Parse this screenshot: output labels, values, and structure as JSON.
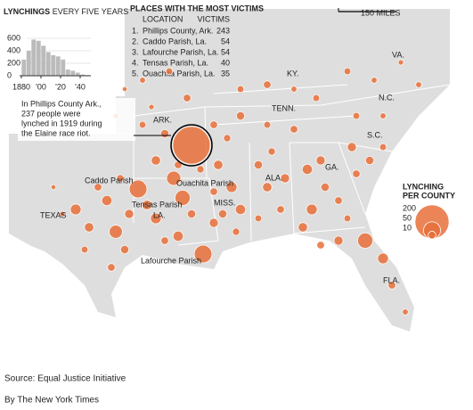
{
  "histogram": {
    "type": "histogram",
    "title": "LYNCHINGS",
    "subtitle": "EVERY FIVE YEARS",
    "bins": [
      1880,
      1885,
      1890,
      1895,
      1900,
      1905,
      1910,
      1915,
      1920,
      1925,
      1930,
      1935,
      1940,
      1945,
      1950
    ],
    "values": [
      260,
      400,
      580,
      560,
      480,
      380,
      330,
      310,
      260,
      100,
      80,
      50,
      20,
      10
    ],
    "color": "#bbbbbb",
    "xlim": [
      1880,
      1950
    ],
    "xticks": [
      1880,
      {
        "value": 1900,
        "label": "'00"
      },
      {
        "value": 1920,
        "label": "'20"
      },
      {
        "value": 1940,
        "label": "'40"
      }
    ],
    "ylim": [
      0,
      600
    ],
    "yticks": [
      0,
      200,
      400,
      600
    ],
    "grid": true
  },
  "table": {
    "title": "PLACES WITH THE MOST VICTIMS",
    "columns": [
      "LOCATION",
      "VICTIMS"
    ],
    "rows": [
      [
        "1.",
        "Phillips County, Ark.",
        243
      ],
      [
        "2.",
        "Caddo Parish, La.",
        54
      ],
      [
        "3.",
        "Lafourche Parish, La.",
        54
      ],
      [
        "4.",
        "Tensas Parish, La.",
        40
      ],
      [
        "5.",
        "Ouachita Parish, La.",
        35
      ]
    ]
  },
  "map": {
    "color": "#e8703a",
    "scale": "150 MILES",
    "states": [
      "ARK.",
      "TENN.",
      "KY.",
      "VA.",
      "N.C.",
      "S.C.",
      "GA.",
      "ALA.",
      "MISS.",
      "LA.",
      "TEXAS",
      "FLA."
    ],
    "places": [
      "Caddo Parish",
      "Ouachita Parish",
      "Tensas Parish",
      "Lafourche Parish"
    ],
    "annotation": [
      "In Phillips County Ark.,",
      "237 people were",
      "lynched in 1919 during",
      "the Elaine race riot."
    ],
    "counties": [
      20,
      15,
      18,
      30,
      10,
      12,
      8,
      10,
      5,
      14,
      9,
      4,
      20,
      18,
      14,
      10,
      12,
      16,
      8,
      12,
      10,
      15,
      9,
      5,
      15,
      20,
      12,
      18,
      10,
      9,
      12,
      15,
      10,
      8,
      14,
      9,
      18,
      12,
      20,
      10,
      14,
      8,
      15,
      14,
      40,
      20,
      10,
      6,
      10,
      10,
      12,
      8,
      10,
      9,
      8,
      10,
      6,
      8,
      8,
      6,
      5,
      6,
      8,
      6,
      14,
      12,
      10,
      8,
      6,
      8,
      10,
      5,
      4
    ],
    "legend": {
      "title": [
        "LYNCHING",
        "PER COUNTY"
      ],
      "values": [
        200,
        50,
        10
      ]
    }
  },
  "source": "Source: Equal Justice Initiative",
  "credit": "By The New York Times"
}
